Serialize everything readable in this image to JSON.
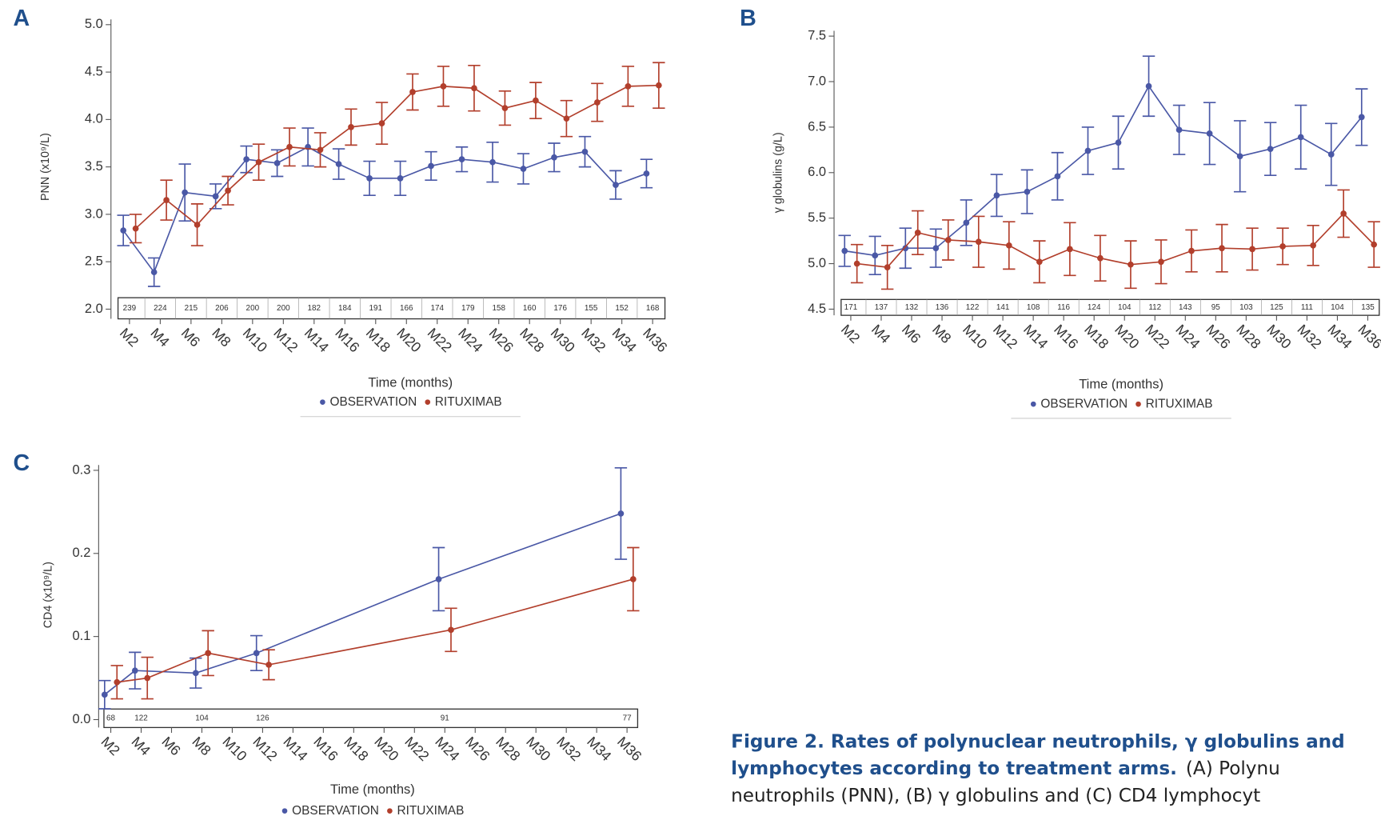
{
  "chart_data": [
    {
      "type": "line",
      "panel": "A",
      "ylabel": "PNN (x10⁹/L)",
      "xlabel": "Time (months)",
      "categories": [
        "M2",
        "M4",
        "M6",
        "M8",
        "M10",
        "M12",
        "M14",
        "M16",
        "M18",
        "M20",
        "M22",
        "M24",
        "M26",
        "M28",
        "M30",
        "M32",
        "M34",
        "M36"
      ],
      "ylim": [
        2,
        5
      ],
      "yticks": [
        {
          "value": 2,
          "label": "2.0"
        },
        {
          "value": 2.5,
          "label": "2.5"
        },
        {
          "value": 3,
          "label": "3.0"
        },
        {
          "value": 3.5,
          "label": "3.5"
        },
        {
          "value": 4,
          "label": "4.0"
        },
        {
          "value": 4.5,
          "label": "4.5"
        },
        {
          "value": 5,
          "label": "5.0"
        }
      ],
      "counts": [
        239,
        224,
        215,
        206,
        200,
        200,
        182,
        184,
        191,
        166,
        174,
        179,
        158,
        160,
        176,
        155,
        152,
        168
      ],
      "series": [
        {
          "name": "OBSERVATION",
          "color": "#4a58a6",
          "values": [
            2.83,
            2.39,
            3.23,
            3.19,
            3.58,
            3.54,
            3.71,
            3.53,
            3.38,
            3.38,
            3.51,
            3.58,
            3.55,
            3.48,
            3.6,
            3.66,
            3.31,
            3.43
          ],
          "errors": [
            0.16,
            0.15,
            0.3,
            0.13,
            0.14,
            0.14,
            0.2,
            0.16,
            0.18,
            0.18,
            0.15,
            0.13,
            0.21,
            0.16,
            0.15,
            0.16,
            0.15,
            0.15
          ]
        },
        {
          "name": "RITUXIMAB",
          "color": "#b23f2c",
          "values": [
            2.85,
            3.15,
            2.89,
            3.25,
            3.55,
            3.71,
            3.68,
            3.92,
            3.96,
            4.29,
            4.35,
            4.33,
            4.12,
            4.2,
            4.01,
            4.18,
            4.35,
            4.36
          ],
          "errors": [
            0.15,
            0.21,
            0.22,
            0.15,
            0.19,
            0.2,
            0.18,
            0.19,
            0.22,
            0.19,
            0.21,
            0.24,
            0.18,
            0.19,
            0.19,
            0.2,
            0.21,
            0.24
          ]
        }
      ]
    },
    {
      "type": "line",
      "panel": "B",
      "ylabel": "γ globulins (g/L)",
      "xlabel": "Time (months)",
      "categories": [
        "M2",
        "M4",
        "M6",
        "M8",
        "M10",
        "M12",
        "M14",
        "M16",
        "M18",
        "M20",
        "M22",
        "M24",
        "M26",
        "M28",
        "M30",
        "M32",
        "M34",
        "M36"
      ],
      "ylim": [
        4.5,
        7.5
      ],
      "yticks": [
        {
          "value": 4.5,
          "label": "4.5"
        },
        {
          "value": 5,
          "label": "5.0"
        },
        {
          "value": 5.5,
          "label": "5.5"
        },
        {
          "value": 6,
          "label": "6.0"
        },
        {
          "value": 6.5,
          "label": "6.5"
        },
        {
          "value": 7,
          "label": "7.0"
        },
        {
          "value": 7.5,
          "label": "7.5"
        }
      ],
      "counts": [
        171,
        137,
        132,
        136,
        122,
        141,
        108,
        116,
        124,
        104,
        112,
        143,
        95,
        103,
        125,
        111,
        104,
        135
      ],
      "series": [
        {
          "name": "OBSERVATION",
          "color": "#4a58a6",
          "values": [
            5.14,
            5.09,
            5.17,
            5.17,
            5.45,
            5.75,
            5.79,
            5.96,
            6.24,
            6.33,
            6.95,
            6.47,
            6.43,
            6.18,
            6.26,
            6.39,
            6.2,
            6.61
          ],
          "errors": [
            0.17,
            0.21,
            0.22,
            0.21,
            0.25,
            0.23,
            0.24,
            0.26,
            0.26,
            0.29,
            0.33,
            0.27,
            0.34,
            0.39,
            0.29,
            0.35,
            0.34,
            0.31
          ]
        },
        {
          "name": "RITUXIMAB",
          "color": "#b23f2c",
          "values": [
            5.0,
            4.96,
            5.34,
            5.26,
            5.24,
            5.2,
            5.02,
            5.16,
            5.06,
            4.99,
            5.02,
            5.14,
            5.17,
            5.16,
            5.19,
            5.2,
            5.55,
            5.21
          ],
          "errors": [
            0.21,
            0.24,
            0.24,
            0.22,
            0.28,
            0.26,
            0.23,
            0.29,
            0.25,
            0.26,
            0.24,
            0.23,
            0.26,
            0.23,
            0.2,
            0.22,
            0.26,
            0.25
          ]
        }
      ]
    },
    {
      "type": "line",
      "panel": "C",
      "ylabel": "CD4 (x10⁹/L)",
      "xlabel": "Time (months)",
      "x": [
        2,
        4,
        8,
        12,
        24,
        36
      ],
      "xlim": [
        1.2,
        36.7
      ],
      "xticks": [
        {
          "value": 2,
          "label": "M2"
        },
        {
          "value": 4,
          "label": "M4"
        },
        {
          "value": 6,
          "label": "M6"
        },
        {
          "value": 8,
          "label": "M8"
        },
        {
          "value": 10,
          "label": "M10"
        },
        {
          "value": 12,
          "label": "M12"
        },
        {
          "value": 14,
          "label": "M14"
        },
        {
          "value": 16,
          "label": "M16"
        },
        {
          "value": 18,
          "label": "M18"
        },
        {
          "value": 20,
          "label": "M20"
        },
        {
          "value": 22,
          "label": "M22"
        },
        {
          "value": 24,
          "label": "M24"
        },
        {
          "value": 26,
          "label": "M26"
        },
        {
          "value": 28,
          "label": "M28"
        },
        {
          "value": 30,
          "label": "M30"
        },
        {
          "value": 32,
          "label": "M32"
        },
        {
          "value": 34,
          "label": "M34"
        },
        {
          "value": 36,
          "label": "M36"
        }
      ],
      "ylim": [
        0,
        0.3
      ],
      "yticks": [
        {
          "value": 0,
          "label": "0.0"
        },
        0.1,
        0.2,
        0.3
      ],
      "counts": [
        68,
        122,
        104,
        126,
        91,
        77
      ],
      "series": [
        {
          "name": "OBSERVATION",
          "color": "#4a58a6",
          "values": [
            0.03,
            0.059,
            0.056,
            0.08,
            0.169,
            0.248
          ],
          "errors": [
            0.017,
            0.022,
            0.018,
            0.021,
            0.038,
            0.055
          ]
        },
        {
          "name": "RITUXIMAB",
          "color": "#b23f2c",
          "values": [
            0.045,
            0.05,
            0.08,
            0.066,
            0.108,
            0.169
          ],
          "errors": [
            0.02,
            0.025,
            0.027,
            0.018,
            0.026,
            0.038
          ]
        }
      ]
    }
  ],
  "caption": {
    "title1": "Figure 2. Rates of polynuclear neutrophils, γ globulins and",
    "title2": "lymphocytes according to treatment arms.",
    "text2": "(A) Polynu",
    "text3": "neutrophils (PNN), (B) γ globulins and (C) CD4 lymphocyt"
  }
}
